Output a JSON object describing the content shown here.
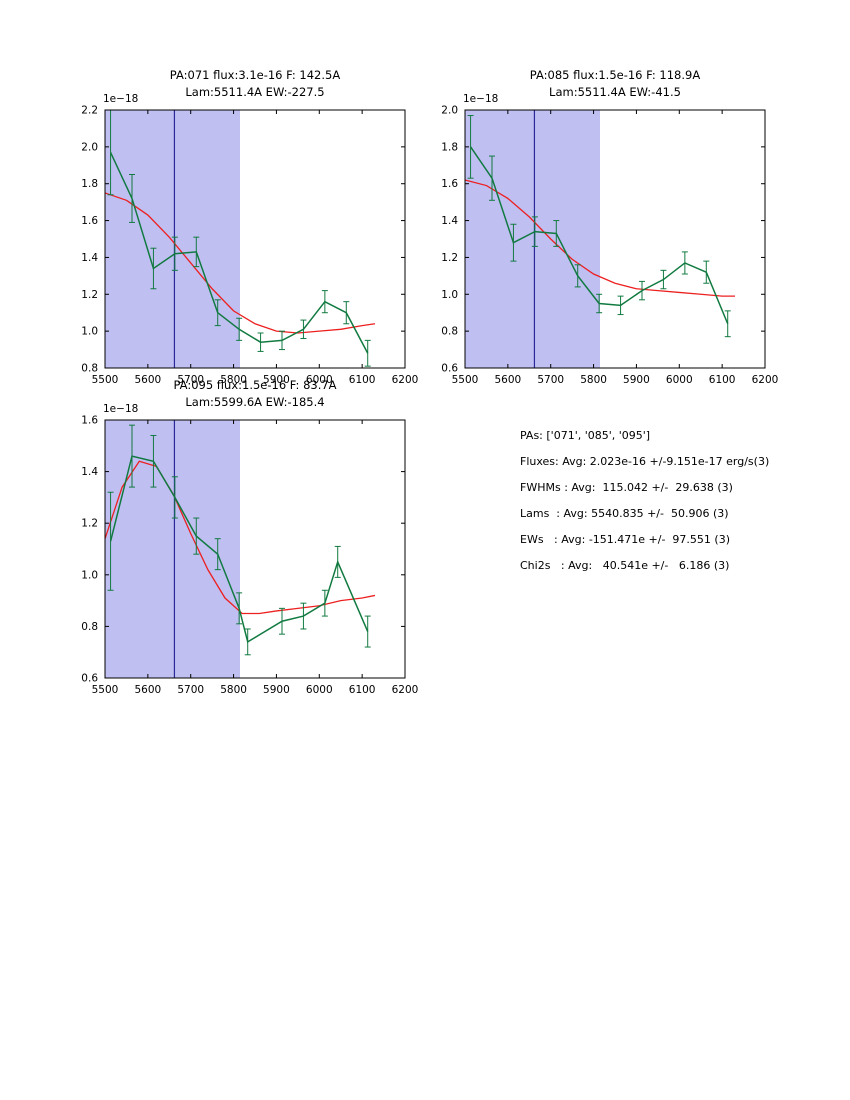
{
  "colors": {
    "background": "#ffffff",
    "band": "#bfbff2",
    "vline": "#2a2a99",
    "data": "#117a40",
    "fit": "#ed2020",
    "axis": "#000000"
  },
  "stats": {
    "lines": [
      "PAs: ['071', '085', '095']",
      "Fluxes: Avg: 2.023e-16 +/-9.151e-17 erg/s(3)",
      "FWHMs : Avg:  115.042 +/-  29.638 (3)",
      "Lams  : Avg: 5540.835 +/-  50.906 (3)",
      "EWs   : Avg: -151.471e +/-  97.551 (3)",
      "Chi2s   : Avg:   40.541e +/-   6.186 (3)"
    ]
  },
  "chart_data": [
    {
      "type": "line",
      "title_line1": "PA:071 flux:3.1e-16 F: 142.5A",
      "title_line2": "Lam:5511.4A EW:-227.5",
      "offset_label": "1e−18",
      "xlim": [
        5500,
        6200
      ],
      "ylim": [
        0.8,
        2.2
      ],
      "xticks": [
        5500,
        5600,
        5700,
        5800,
        5900,
        6000,
        6100,
        6200
      ],
      "yticks": [
        0.8,
        1.0,
        1.2,
        1.4,
        1.6,
        1.8,
        2.0,
        2.2
      ],
      "band": [
        5500,
        5815
      ],
      "vline": 5662,
      "legend": "off",
      "grid": "off",
      "series": [
        {
          "name": "spectrum-data",
          "x": [
            5513,
            5563,
            5613,
            5663,
            5713,
            5763,
            5813,
            5863,
            5913,
            5963,
            6013,
            6063,
            6113
          ],
          "y": [
            1.97,
            1.72,
            1.34,
            1.42,
            1.43,
            1.1,
            1.01,
            0.94,
            0.95,
            1.01,
            1.16,
            1.1,
            0.88
          ],
          "yerr": [
            0.23,
            0.13,
            0.11,
            0.09,
            0.08,
            0.07,
            0.06,
            0.05,
            0.05,
            0.05,
            0.06,
            0.06,
            0.07
          ]
        },
        {
          "name": "gaussian-fit",
          "x": [
            5500,
            5550,
            5600,
            5650,
            5700,
            5750,
            5800,
            5850,
            5900,
            5950,
            6000,
            6050,
            6100,
            6130
          ],
          "y": [
            1.75,
            1.71,
            1.63,
            1.51,
            1.37,
            1.23,
            1.11,
            1.04,
            1.0,
            0.99,
            1.0,
            1.01,
            1.03,
            1.04
          ]
        }
      ]
    },
    {
      "type": "line",
      "title_line1": "PA:085 flux:1.5e-16 F: 118.9A",
      "title_line2": "Lam:5511.4A EW:-41.5",
      "offset_label": "1e−18",
      "xlim": [
        5500,
        6200
      ],
      "ylim": [
        0.6,
        2.0
      ],
      "xticks": [
        5500,
        5600,
        5700,
        5800,
        5900,
        6000,
        6100,
        6200
      ],
      "yticks": [
        0.6,
        0.8,
        1.0,
        1.2,
        1.4,
        1.6,
        1.8,
        2.0
      ],
      "band": [
        5500,
        5815
      ],
      "vline": 5662,
      "legend": "off",
      "grid": "off",
      "series": [
        {
          "name": "spectrum-data",
          "x": [
            5513,
            5563,
            5613,
            5663,
            5713,
            5763,
            5813,
            5863,
            5913,
            5963,
            6013,
            6063,
            6113
          ],
          "y": [
            1.8,
            1.63,
            1.28,
            1.34,
            1.33,
            1.1,
            0.95,
            0.94,
            1.02,
            1.08,
            1.17,
            1.12,
            0.84
          ],
          "yerr": [
            0.17,
            0.12,
            0.1,
            0.08,
            0.07,
            0.06,
            0.05,
            0.05,
            0.05,
            0.05,
            0.06,
            0.06,
            0.07
          ]
        },
        {
          "name": "gaussian-fit",
          "x": [
            5500,
            5550,
            5600,
            5650,
            5700,
            5750,
            5800,
            5850,
            5900,
            5950,
            6000,
            6050,
            6100,
            6130
          ],
          "y": [
            1.62,
            1.59,
            1.52,
            1.42,
            1.3,
            1.19,
            1.11,
            1.06,
            1.03,
            1.02,
            1.01,
            1.0,
            0.99,
            0.99
          ]
        }
      ]
    },
    {
      "type": "line",
      "title_line1": "PA:095 flux:1.5e-16 F: 83.7A",
      "title_line2": "Lam:5599.6A EW:-185.4",
      "offset_label": "1e−18",
      "xlim": [
        5500,
        6200
      ],
      "ylim": [
        0.6,
        1.6
      ],
      "xticks": [
        5500,
        5600,
        5700,
        5800,
        5900,
        6000,
        6100,
        6200
      ],
      "yticks": [
        0.6,
        0.8,
        1.0,
        1.2,
        1.4,
        1.6
      ],
      "band": [
        5500,
        5815
      ],
      "vline": 5662,
      "legend": "off",
      "grid": "off",
      "series": [
        {
          "name": "spectrum-data",
          "x": [
            5513,
            5563,
            5613,
            5663,
            5713,
            5763,
            5813,
            5833,
            5913,
            5963,
            6013,
            6043,
            6113
          ],
          "y": [
            1.13,
            1.46,
            1.44,
            1.3,
            1.15,
            1.08,
            0.87,
            0.74,
            0.82,
            0.84,
            0.89,
            1.05,
            0.78
          ],
          "yerr": [
            0.19,
            0.12,
            0.1,
            0.08,
            0.07,
            0.06,
            0.06,
            0.05,
            0.05,
            0.05,
            0.05,
            0.06,
            0.06
          ]
        },
        {
          "name": "gaussian-fit",
          "x": [
            5500,
            5540,
            5580,
            5620,
            5660,
            5700,
            5740,
            5780,
            5820,
            5860,
            5900,
            5950,
            6000,
            6050,
            6100,
            6130
          ],
          "y": [
            1.14,
            1.34,
            1.44,
            1.42,
            1.31,
            1.16,
            1.02,
            0.91,
            0.85,
            0.85,
            0.86,
            0.87,
            0.88,
            0.9,
            0.91,
            0.92
          ]
        }
      ]
    }
  ]
}
